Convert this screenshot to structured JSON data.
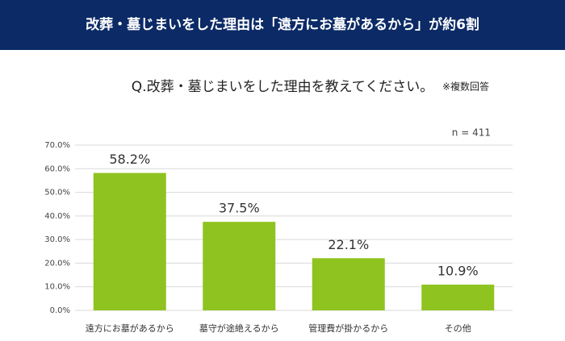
{
  "chart_data": {
    "type": "bar",
    "title": "改葬・墓じまいをした理由は「遠方にお墓があるから」が約6割",
    "subtitle": "Q.改葬・墓じまいをした理由を教えてください。",
    "note": "※複数回答",
    "sample_size": "n = 411",
    "categories": [
      "遠方にお墓があるから",
      "墓守が途絶えるから",
      "管理費が掛かるから",
      "その他"
    ],
    "values": [
      58.2,
      37.5,
      22.1,
      10.9
    ],
    "value_labels": [
      "58.2%",
      "37.5%",
      "22.1%",
      "10.9%"
    ],
    "color": "#8fc31f",
    "ylim": [
      0,
      70
    ],
    "yticks": [
      {
        "value": 0,
        "label": "0.0%"
      },
      {
        "value": 10,
        "label": "10.0%"
      },
      {
        "value": 20,
        "label": "20.0%"
      },
      {
        "value": 30,
        "label": "30.0%"
      },
      {
        "value": 40,
        "label": "40.0%"
      },
      {
        "value": 50,
        "label": "50.0%"
      },
      {
        "value": 60,
        "label": "60.0%"
      },
      {
        "value": 70,
        "label": "70.0%"
      }
    ],
    "grid": true
  }
}
